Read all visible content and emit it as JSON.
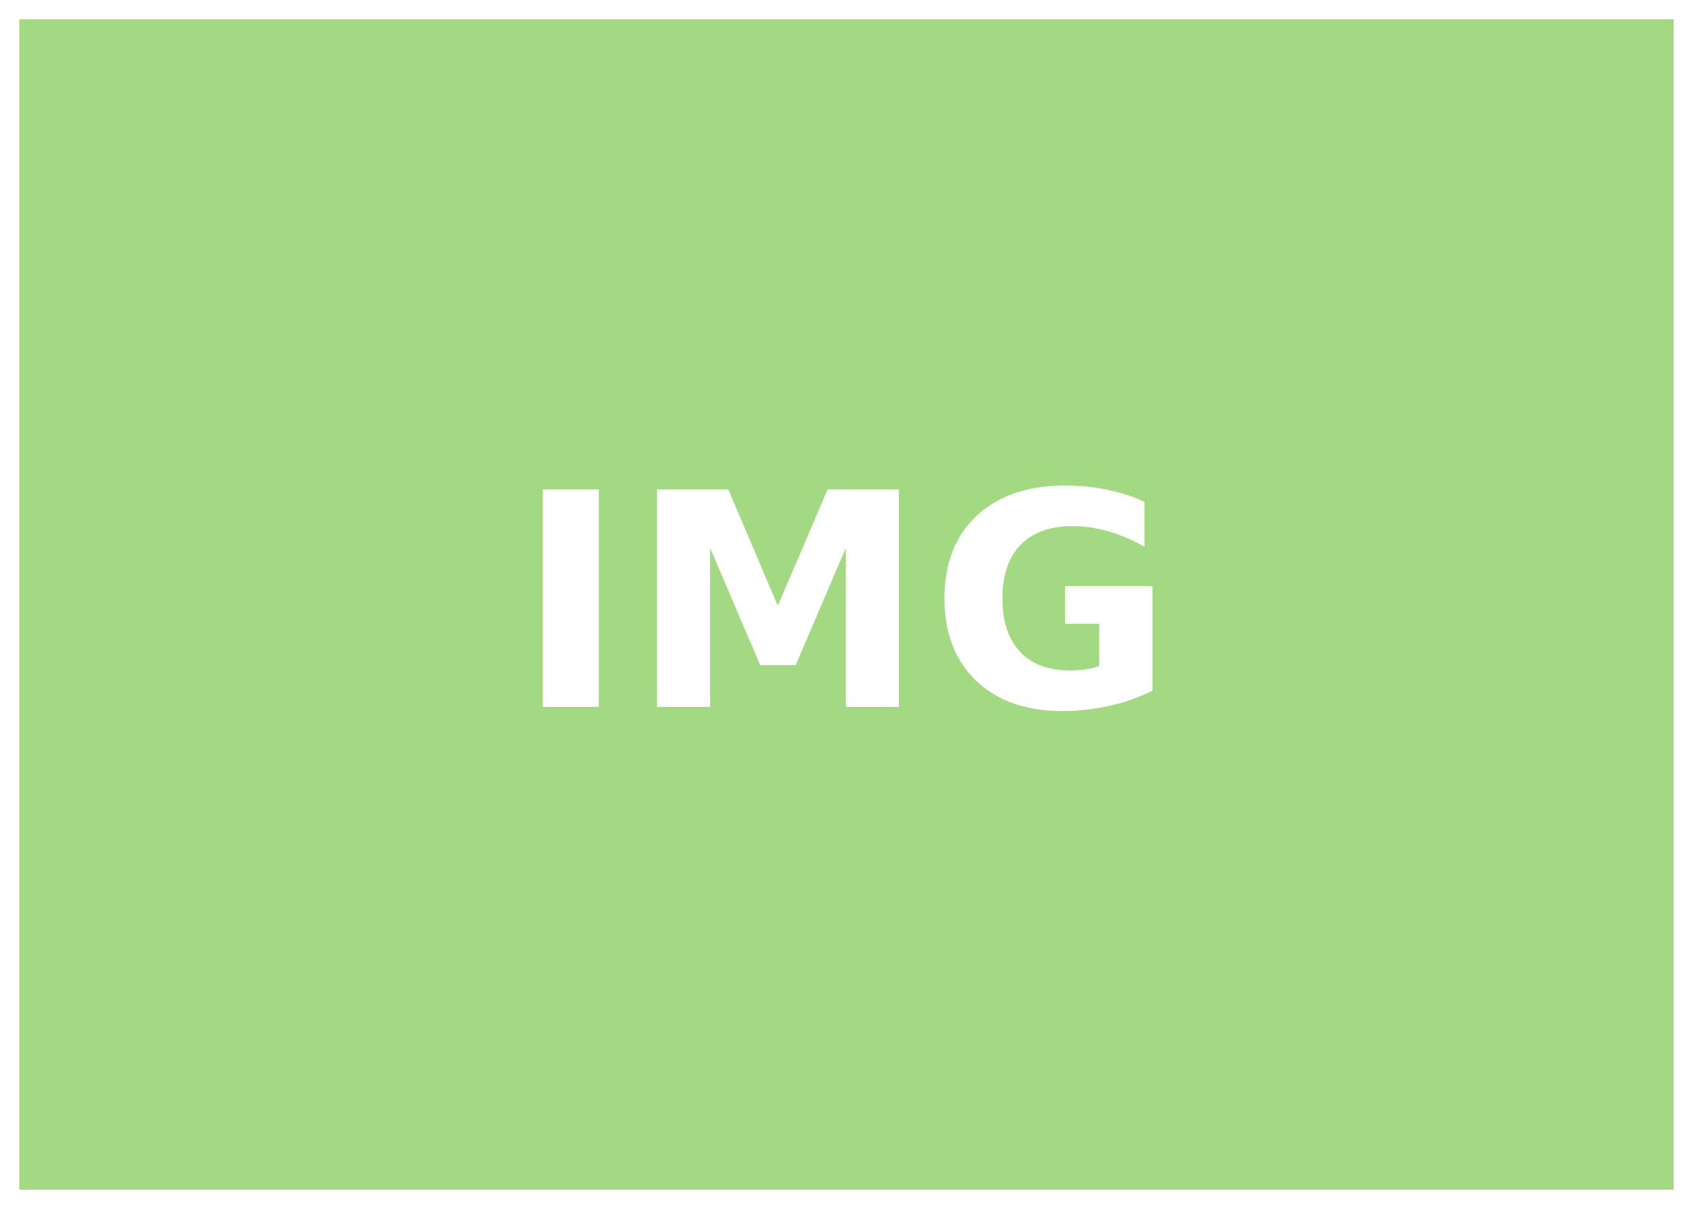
{
  "placeholder": {
    "label": "IMG",
    "background_color": "#a4d983",
    "text_color": "#ffffff",
    "page_background": "#ffffff"
  }
}
